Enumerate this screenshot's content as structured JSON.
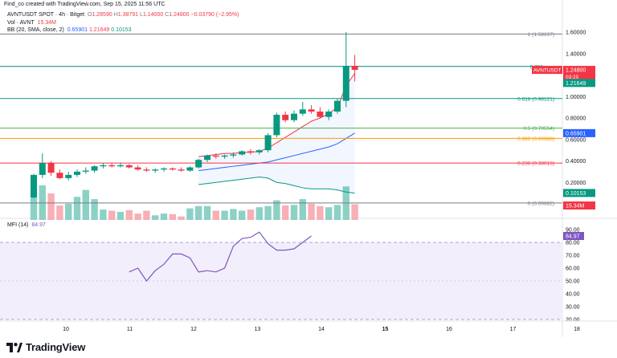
{
  "header": {
    "credit": "Find_co created with TradingView.com, Sep 15, 2025 11:56 UTC",
    "symbol": "AVNTUSDT SPOT · 4h · Bitget",
    "ohlc": {
      "o_label": "O",
      "o": "1.28590",
      "h_label": "H",
      "h": "1.38791",
      "l_label": "L",
      "l": "1.14000",
      "c_label": "C",
      "c": "1.24800",
      "change": "−0.03790 (−2.95%)"
    },
    "vol_label": "Vol · AVNT",
    "vol_value": "15.34M",
    "bb_label": "BB (20, SMA, close, 2)",
    "bb_basis": "0.65901",
    "bb_upper": "1.21649",
    "bb_lower": "0.10153",
    "mfi_label": "MFI (14)",
    "mfi_value": "84.97"
  },
  "brand": {
    "name": "TradingView"
  },
  "colors": {
    "up": "#089981",
    "down": "#f23645",
    "vol_up": "#80ccbf",
    "vol_down": "#f7a6ad",
    "bb_basis": "#2962ff",
    "bb_band": "#089981",
    "mfi": "#7e57c2",
    "mfi_bg": "#f3eefb"
  },
  "chart_data": [
    {
      "type": "candlestick",
      "x_ticks": [
        "10",
        "11",
        "12",
        "13",
        "14",
        "15",
        "16",
        "17",
        "18"
      ],
      "y_ticks": [
        "1.60000",
        "1.40000",
        "1.00000",
        "0.80000",
        "0.60000",
        "0.40000",
        "0.20000"
      ],
      "ylim": [
        -0.05,
        1.7
      ],
      "candles": [
        [
          0.06,
          0.28,
          0.05,
          0.27
        ],
        [
          0.27,
          0.47,
          0.24,
          0.38
        ],
        [
          0.38,
          0.4,
          0.26,
          0.29
        ],
        [
          0.29,
          0.32,
          0.23,
          0.24
        ],
        [
          0.24,
          0.3,
          0.22,
          0.27
        ],
        [
          0.27,
          0.32,
          0.25,
          0.3
        ],
        [
          0.3,
          0.34,
          0.28,
          0.31
        ],
        [
          0.31,
          0.36,
          0.29,
          0.35
        ],
        [
          0.35,
          0.38,
          0.33,
          0.36
        ],
        [
          0.36,
          0.38,
          0.34,
          0.35
        ],
        [
          0.35,
          0.38,
          0.34,
          0.36
        ],
        [
          0.36,
          0.37,
          0.33,
          0.34
        ],
        [
          0.34,
          0.36,
          0.31,
          0.32
        ],
        [
          0.32,
          0.34,
          0.3,
          0.31
        ],
        [
          0.31,
          0.33,
          0.29,
          0.32
        ],
        [
          0.32,
          0.34,
          0.3,
          0.33
        ],
        [
          0.33,
          0.34,
          0.31,
          0.32
        ],
        [
          0.32,
          0.34,
          0.3,
          0.31
        ],
        [
          0.31,
          0.35,
          0.3,
          0.34
        ],
        [
          0.34,
          0.42,
          0.33,
          0.41
        ],
        [
          0.41,
          0.46,
          0.39,
          0.45
        ],
        [
          0.45,
          0.47,
          0.42,
          0.44
        ],
        [
          0.44,
          0.46,
          0.42,
          0.45
        ],
        [
          0.45,
          0.48,
          0.43,
          0.46
        ],
        [
          0.46,
          0.5,
          0.45,
          0.49
        ],
        [
          0.49,
          0.51,
          0.46,
          0.48
        ],
        [
          0.48,
          0.51,
          0.46,
          0.5
        ],
        [
          0.5,
          0.66,
          0.48,
          0.64
        ],
        [
          0.64,
          0.85,
          0.62,
          0.83
        ],
        [
          0.83,
          0.86,
          0.76,
          0.78
        ],
        [
          0.78,
          0.87,
          0.76,
          0.84
        ],
        [
          0.84,
          0.95,
          0.82,
          0.88
        ],
        [
          0.88,
          0.92,
          0.84,
          0.86
        ],
        [
          0.86,
          0.9,
          0.8,
          0.81
        ],
        [
          0.81,
          0.88,
          0.78,
          0.86
        ],
        [
          0.86,
          0.98,
          0.84,
          0.96
        ],
        [
          0.96,
          1.6,
          0.9,
          1.286
        ],
        [
          1.286,
          1.388,
          1.14,
          1.248
        ]
      ],
      "volumes": [
        0.42,
        0.6,
        0.46,
        0.25,
        0.28,
        0.4,
        0.52,
        0.36,
        0.18,
        0.16,
        0.14,
        0.17,
        0.11,
        0.16,
        0.08,
        0.11,
        0.1,
        0.06,
        0.2,
        0.24,
        0.24,
        0.16,
        0.16,
        0.19,
        0.16,
        0.18,
        0.22,
        0.24,
        0.34,
        0.25,
        0.26,
        0.36,
        0.28,
        0.24,
        0.22,
        0.26,
        0.58,
        0.27
      ],
      "bb_upper": [
        [
          19,
          0.44
        ],
        [
          20,
          0.45
        ],
        [
          21,
          0.46
        ],
        [
          22,
          0.47
        ],
        [
          23,
          0.47
        ],
        [
          24,
          0.48
        ],
        [
          25,
          0.48
        ],
        [
          26,
          0.49
        ],
        [
          27,
          0.52
        ],
        [
          28,
          0.57
        ],
        [
          29,
          0.62
        ],
        [
          30,
          0.67
        ],
        [
          31,
          0.72
        ],
        [
          32,
          0.77
        ],
        [
          33,
          0.8
        ],
        [
          34,
          0.84
        ],
        [
          35,
          0.9
        ],
        [
          36,
          1.1
        ],
        [
          37,
          1.216
        ]
      ],
      "bb_basis": [
        [
          19,
          0.31
        ],
        [
          20,
          0.32
        ],
        [
          21,
          0.33
        ],
        [
          22,
          0.34
        ],
        [
          23,
          0.35
        ],
        [
          24,
          0.36
        ],
        [
          25,
          0.37
        ],
        [
          26,
          0.38
        ],
        [
          27,
          0.39
        ],
        [
          28,
          0.41
        ],
        [
          29,
          0.43
        ],
        [
          30,
          0.45
        ],
        [
          31,
          0.47
        ],
        [
          32,
          0.49
        ],
        [
          33,
          0.51
        ],
        [
          34,
          0.53
        ],
        [
          35,
          0.56
        ],
        [
          36,
          0.61
        ],
        [
          37,
          0.659
        ]
      ],
      "bb_lower": [
        [
          19,
          0.18
        ],
        [
          20,
          0.19
        ],
        [
          21,
          0.2
        ],
        [
          22,
          0.21
        ],
        [
          23,
          0.22
        ],
        [
          24,
          0.23
        ],
        [
          25,
          0.24
        ],
        [
          26,
          0.25
        ],
        [
          27,
          0.24
        ],
        [
          28,
          0.2
        ],
        [
          29,
          0.19
        ],
        [
          30,
          0.17
        ],
        [
          31,
          0.15
        ],
        [
          32,
          0.14
        ],
        [
          33,
          0.14
        ],
        [
          34,
          0.14
        ],
        [
          35,
          0.13
        ],
        [
          36,
          0.11
        ],
        [
          37,
          0.1
        ]
      ],
      "fib_levels": [
        {
          "label": "1 (1.58227)",
          "value": 1.58227,
          "color": "#787b86"
        },
        {
          "label": "0.786",
          "value": 1.28,
          "color": "#00897b"
        },
        {
          "label": "0.618 (0.98121)",
          "value": 0.98121,
          "color": "#089981"
        },
        {
          "label": "0.5 (0.70554)",
          "value": 0.70554,
          "color": "#4caf50"
        },
        {
          "label": "0.382 (0.60988)",
          "value": 0.60988,
          "color": "#ff9800"
        },
        {
          "label": "0.236 (0.38016)",
          "value": 0.38016,
          "color": "#f23645"
        },
        {
          "label": "0 (0.00882)",
          "value": 0.00882,
          "color": "#787b86"
        }
      ],
      "price_tags": [
        {
          "label": "AVNTUSDT",
          "value": "1.24800",
          "sub": "03:25",
          "color": "#f23645",
          "y": 1.248
        },
        {
          "label": "",
          "value": "1.21649",
          "sub": "",
          "color": "#089981",
          "y": 1.216
        },
        {
          "label": "",
          "value": "0.65901",
          "sub": "",
          "color": "#2962ff",
          "y": 0.659
        },
        {
          "label": "",
          "value": "0.10153",
          "sub": "",
          "color": "#089981",
          "y": 0.10153
        },
        {
          "label": "",
          "value": "15.34M",
          "sub": "",
          "color": "#f23645",
          "y": 0.0
        }
      ]
    },
    {
      "type": "line",
      "name": "MFI (14)",
      "y_ticks": [
        "90.00",
        "80.00",
        "70.00",
        "60.00",
        "50.00",
        "40.00",
        "30.00",
        "20.00"
      ],
      "ylim": [
        20,
        90
      ],
      "bands": [
        20,
        80
      ],
      "values": [
        [
          22,
          57
        ],
        [
          24,
          60
        ],
        [
          26,
          50
        ],
        [
          28,
          58
        ],
        [
          30,
          63
        ],
        [
          32,
          71
        ],
        [
          34,
          71
        ],
        [
          36,
          68
        ],
        [
          38,
          57
        ],
        [
          40,
          58
        ],
        [
          42,
          57
        ],
        [
          44,
          60
        ],
        [
          46,
          77
        ],
        [
          48,
          83
        ],
        [
          50,
          84
        ],
        [
          52,
          88
        ],
        [
          54,
          79
        ],
        [
          56,
          74
        ],
        [
          58,
          74
        ],
        [
          60,
          75
        ],
        [
          62,
          80
        ],
        [
          64,
          85
        ]
      ]
    }
  ]
}
